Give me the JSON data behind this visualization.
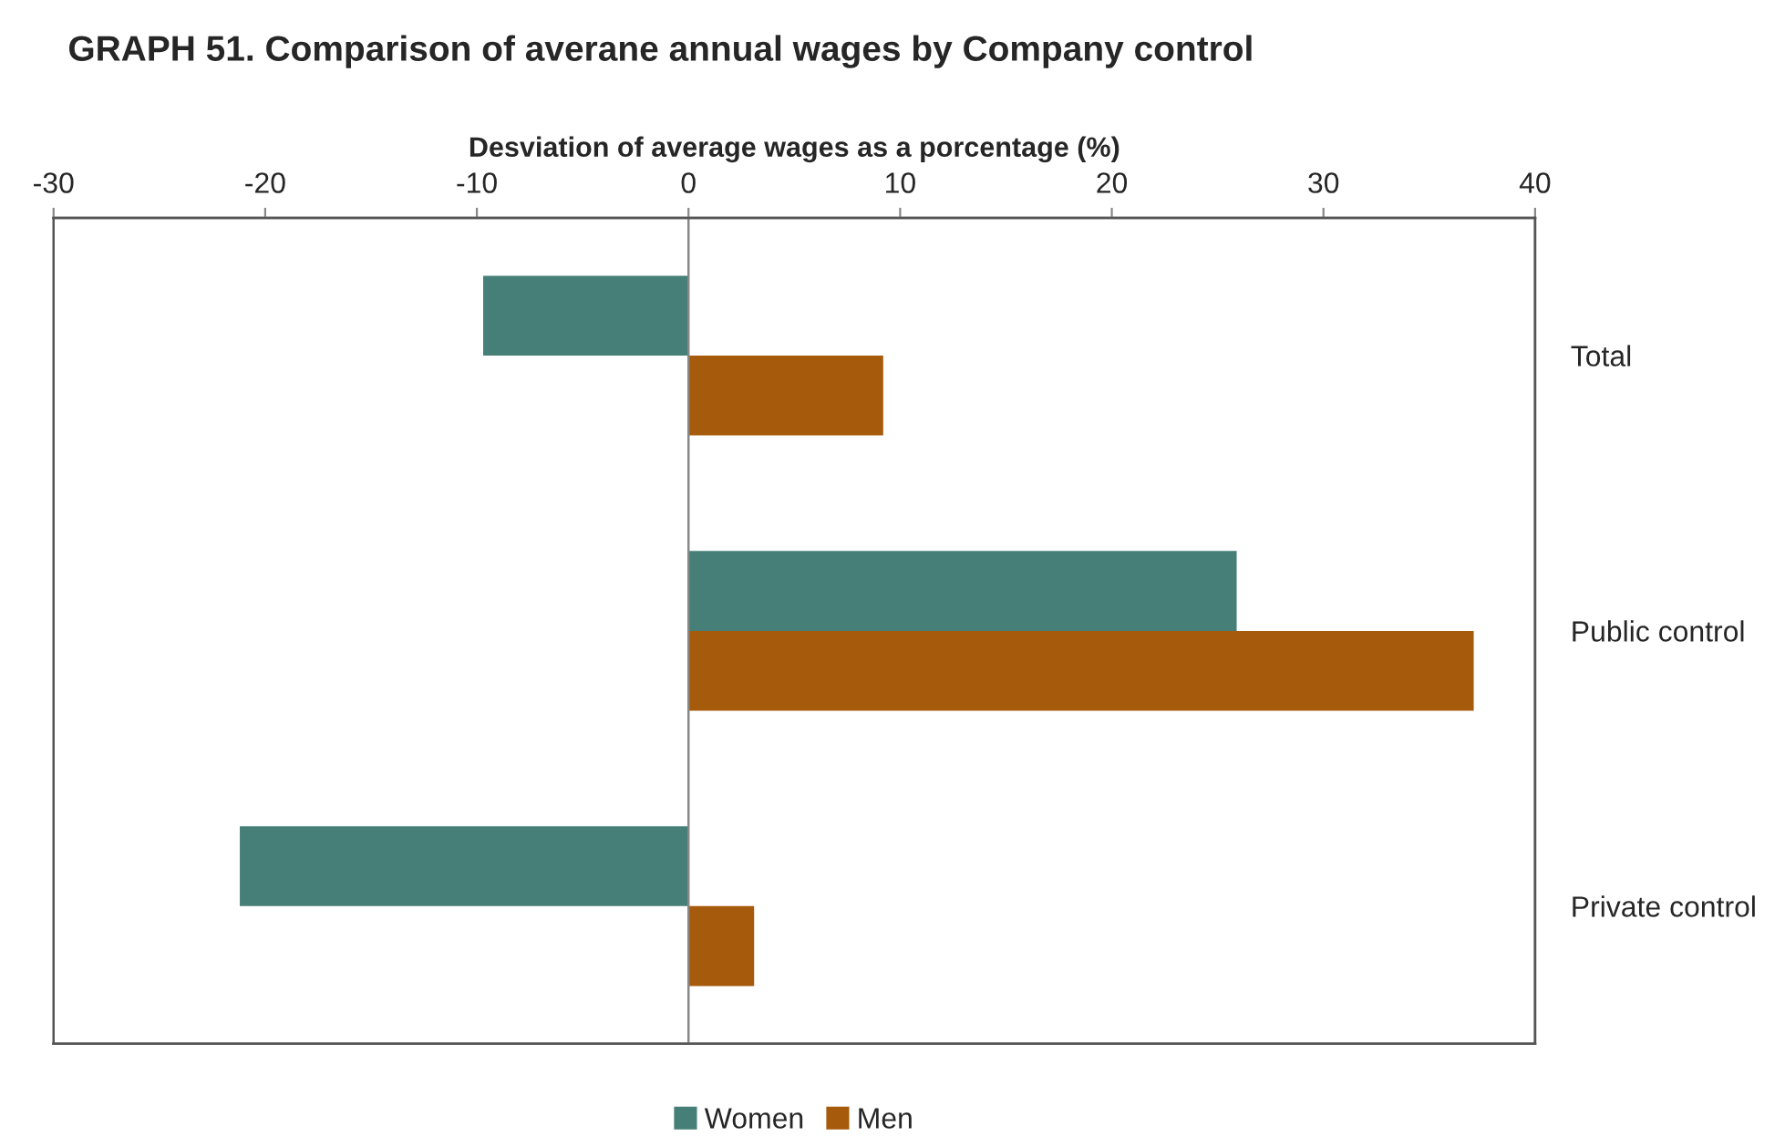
{
  "chart_data": {
    "type": "bar",
    "orientation": "horizontal",
    "title": "GRAPH 51. Comparison of averane annual wages by Company control",
    "xlabel": "Desviation of average wages as a porcentage (%)",
    "categories": [
      "Total",
      "Public control",
      "Private control"
    ],
    "series": [
      {
        "name": "Women",
        "color": "#467f77",
        "values": [
          -9.7,
          25.9,
          -21.2
        ]
      },
      {
        "name": "Men",
        "color": "#a65a0b",
        "values": [
          9.2,
          37.1,
          3.1
        ]
      }
    ],
    "xlim": [
      -30,
      40
    ],
    "xticks": [
      -30,
      -20,
      -10,
      0,
      10,
      20,
      30,
      40
    ],
    "legend": "bottom"
  }
}
